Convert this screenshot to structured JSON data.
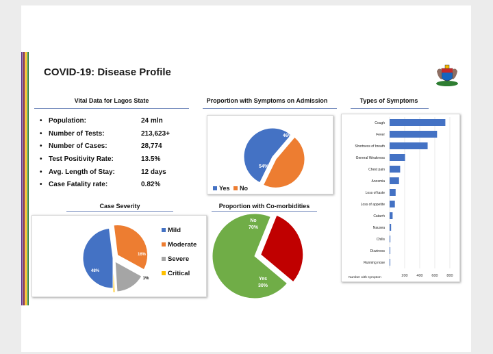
{
  "title": "COVID-19: Disease Profile",
  "colors": {
    "blue": "#4472c4",
    "orange": "#ed7d31",
    "gray": "#a5a5a5",
    "yellow": "#ffc000",
    "green": "#70ad47",
    "red": "#c00000"
  },
  "vital": {
    "heading": "Vital Data for Lagos State",
    "rows": [
      {
        "label": "Population:",
        "value": "24 mln"
      },
      {
        "label": "Number of Tests:",
        "value": "213,623+"
      },
      {
        "label": "Number of Cases:",
        "value": "28,774"
      },
      {
        "label": "Test Positivity Rate:",
        "value": "13.5%"
      },
      {
        "label": "Avg. Length of Stay:",
        "value": "12 days"
      },
      {
        "label": "Case Fatality rate:",
        "value": "0.82%"
      }
    ]
  },
  "chart_data": [
    {
      "id": "symptoms_admission",
      "type": "pie",
      "title": "Proportion with Symptoms on Admission",
      "categories": [
        "Yes",
        "No"
      ],
      "values": [
        54,
        46
      ],
      "labels": [
        "54%",
        "46%"
      ],
      "colors": [
        "#4472c4",
        "#ed7d31"
      ],
      "legend": "bottom"
    },
    {
      "id": "types_of_symptoms",
      "type": "bar",
      "title": "Types of Symptoms",
      "orientation": "horizontal",
      "categories": [
        "Cough",
        "Fever",
        "Shortness of breath",
        "General Weakness",
        "Chest pain",
        "Anosmia",
        "Loss of taste",
        "Loss of appetite",
        "Catarrh",
        "Nausea",
        "Chills",
        "Dizziness",
        "Running nose"
      ],
      "values": [
        740,
        630,
        505,
        205,
        140,
        125,
        80,
        70,
        40,
        20,
        10,
        8,
        5
      ],
      "xlabel": "Number with symptom",
      "xticks": [
        "0",
        "200",
        "400",
        "600",
        "800"
      ],
      "xlim": [
        0,
        800
      ],
      "grid": true
    },
    {
      "id": "case_severity",
      "type": "pie",
      "title": "Case Severity",
      "categories": [
        "Mild",
        "Moderate",
        "Severe",
        "Critical"
      ],
      "values": [
        48,
        35,
        16,
        1
      ],
      "labels": [
        "48%",
        "35%",
        "16%",
        "1%"
      ],
      "colors": [
        "#4472c4",
        "#ed7d31",
        "#a5a5a5",
        "#ffc000"
      ],
      "legend": "right"
    },
    {
      "id": "comorbidities",
      "type": "pie",
      "title": "Proportion with Co-morbidities",
      "categories": [
        "No",
        "Yes"
      ],
      "values": [
        70,
        30
      ],
      "labels": [
        "No\n70%",
        "Yes\n30%"
      ],
      "colors": [
        "#70ad47",
        "#c00000"
      ]
    }
  ]
}
